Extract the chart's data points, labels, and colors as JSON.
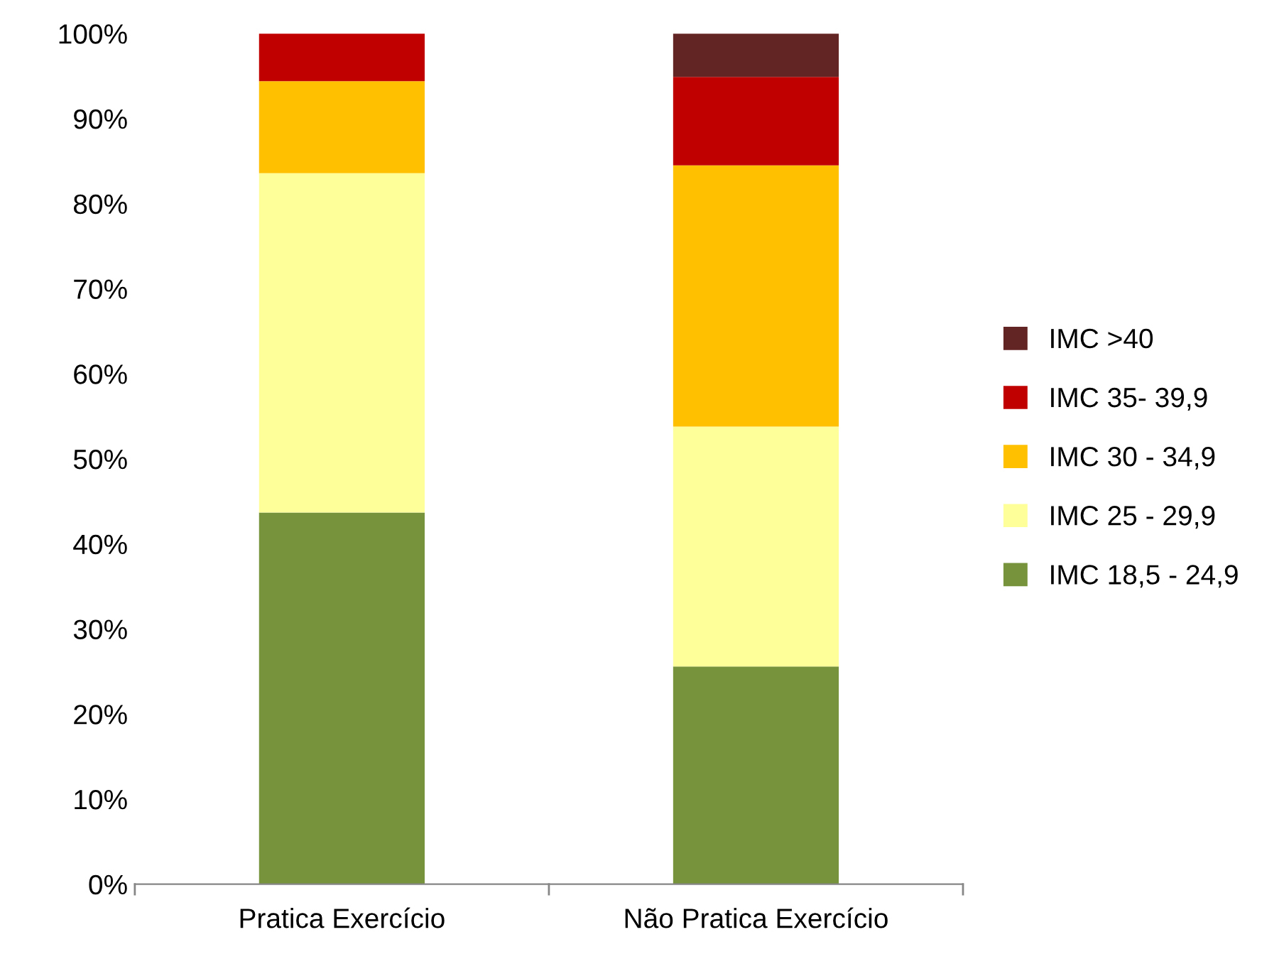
{
  "chart_data": {
    "type": "bar",
    "stacked": true,
    "categories": [
      "Pratica Exercício",
      "Não Pratica Exercício"
    ],
    "series": [
      {
        "name": "IMC 18,5 - 24,9",
        "color": "#77933c",
        "values": [
          43.7,
          25.6
        ]
      },
      {
        "name": "IMC 25 - 29,9",
        "color": "#ffff99",
        "values": [
          39.9,
          28.2
        ]
      },
      {
        "name": "IMC 30 - 34,9",
        "color": "#ffc000",
        "values": [
          10.8,
          30.7
        ]
      },
      {
        "name": "IMC 35- 39,9",
        "color": "#c00000",
        "values": [
          5.6,
          10.4
        ]
      },
      {
        "name": "IMC >40",
        "color": "#632523",
        "values": [
          0,
          5.1
        ]
      }
    ],
    "ylim": [
      0,
      100
    ],
    "yticks": [
      {
        "value": 0,
        "label": "0%"
      },
      {
        "value": 10,
        "label": "10%"
      },
      {
        "value": 20,
        "label": "20%"
      },
      {
        "value": 30,
        "label": "30%"
      },
      {
        "value": 40,
        "label": "40%"
      },
      {
        "value": 50,
        "label": "50%"
      },
      {
        "value": 60,
        "label": "60%"
      },
      {
        "value": 70,
        "label": "70%"
      },
      {
        "value": 80,
        "label": "80%"
      },
      {
        "value": 90,
        "label": "90%"
      },
      {
        "value": 100,
        "label": "100%"
      }
    ],
    "grid": false,
    "legend": "right"
  }
}
